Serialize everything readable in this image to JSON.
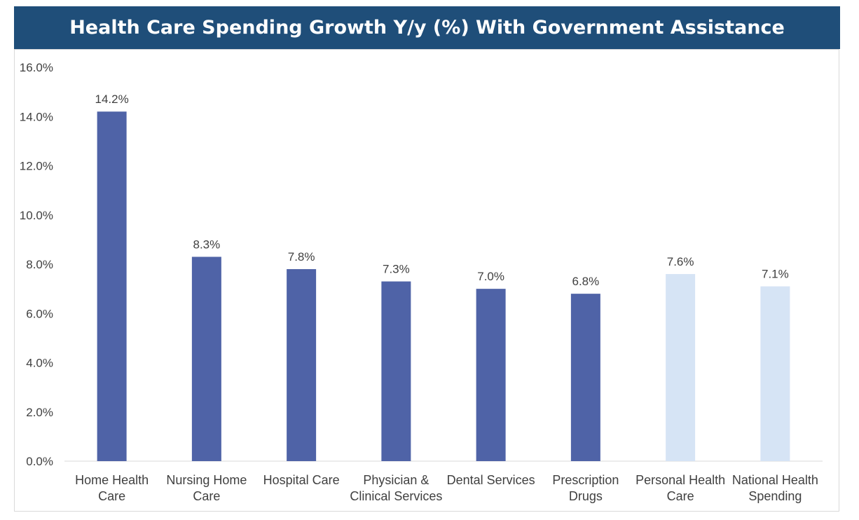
{
  "chart_data": {
    "type": "bar",
    "title": "Health Care Spending Growth Y/y (%) With Government Assistance",
    "categories": [
      [
        "Home Health",
        "Care"
      ],
      [
        "Nursing Home",
        "Care"
      ],
      [
        "Hospital Care"
      ],
      [
        "Physician &",
        "Clinical Services"
      ],
      [
        "Dental Services"
      ],
      [
        "Prescription",
        "Drugs"
      ],
      [
        "Personal Health",
        "Care"
      ],
      [
        "National Health",
        "Spending"
      ]
    ],
    "values": [
      14.2,
      8.3,
      7.8,
      7.3,
      7.0,
      6.8,
      7.6,
      7.1
    ],
    "data_labels": [
      "14.2%",
      "8.3%",
      "7.8%",
      "7.3%",
      "7.0%",
      "6.8%",
      "7.6%",
      "7.1%"
    ],
    "y_ticks": [
      "0.0%",
      "2.0%",
      "4.0%",
      "6.0%",
      "8.0%",
      "10.0%",
      "12.0%",
      "14.0%",
      "16.0%"
    ],
    "ylim": [
      0,
      16
    ],
    "xlabel": "",
    "ylabel": "",
    "grid": false,
    "legend": "none",
    "bar_colors": [
      "#4f63a7",
      "#4f63a7",
      "#4f63a7",
      "#4f63a7",
      "#4f63a7",
      "#4f63a7",
      "#d6e4f5",
      "#d6e4f5"
    ],
    "title_background": "#1f4e79"
  }
}
